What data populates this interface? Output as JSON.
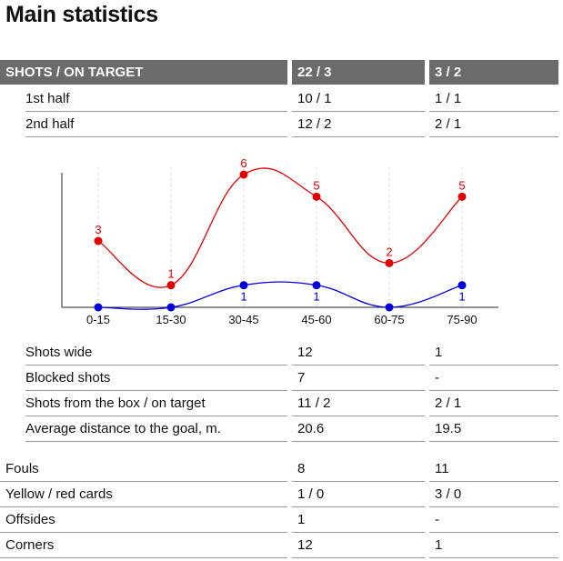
{
  "title": "Main statistics",
  "shots_header": {
    "label": "SHOTS / ON TARGET",
    "team1": "22 / 3",
    "team2": "3 / 2"
  },
  "halves": [
    {
      "label": "1st half",
      "team1": "10 / 1",
      "team2": "1 / 1"
    },
    {
      "label": "2nd half",
      "team1": "12 / 2",
      "team2": "2 / 1"
    }
  ],
  "chart_data": {
    "type": "line",
    "categories": [
      "0-15",
      "15-30",
      "30-45",
      "45-60",
      "60-75",
      "75-90"
    ],
    "series": [
      {
        "color": "#e00000",
        "values": [
          3,
          1,
          6,
          5,
          2,
          5
        ],
        "labels": [
          "3",
          "1",
          "6",
          "5",
          "2",
          "5"
        ],
        "label_visible": [
          true,
          true,
          true,
          true,
          true,
          true
        ]
      },
      {
        "color": "#0000dd",
        "values": [
          0,
          0,
          1,
          1,
          0,
          1
        ],
        "labels": [
          "",
          "",
          "1",
          "1",
          "",
          "1"
        ],
        "label_visible": [
          false,
          false,
          true,
          true,
          false,
          true
        ]
      }
    ],
    "ylim": [
      0,
      6
    ],
    "grid": "dashed vertical"
  },
  "shot_details": [
    {
      "label": "Shots wide",
      "team1": "12",
      "team2": "1"
    },
    {
      "label": "Blocked shots",
      "team1": "7",
      "team2": "-"
    },
    {
      "label": "Shots from the box / on target",
      "team1": "11 / 2",
      "team2": "2 / 1"
    },
    {
      "label": "Average distance to the goal, m.",
      "team1": "20.6",
      "team2": "19.5"
    }
  ],
  "other_stats": [
    {
      "label": "Fouls",
      "team1": "8",
      "team2": "11"
    },
    {
      "label": "Yellow / red cards",
      "team1": "1 / 0",
      "team2": "3 / 0"
    },
    {
      "label": "Offsides",
      "team1": "1",
      "team2": "-"
    },
    {
      "label": "Corners",
      "team1": "12",
      "team2": "1"
    }
  ]
}
